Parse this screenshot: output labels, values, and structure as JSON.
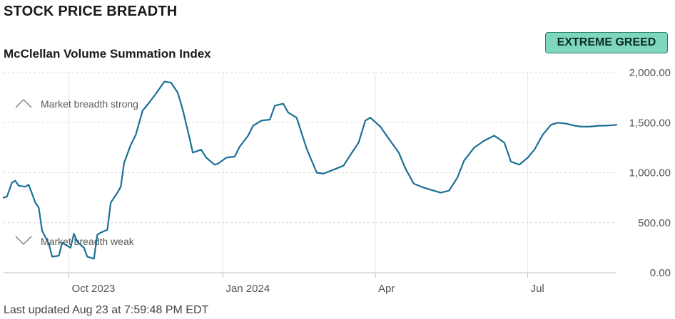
{
  "header": {
    "section_title": "STOCK PRICE BREADTH",
    "chart_title": "McClellan Volume Summation Index",
    "badge": "EXTREME GREED",
    "last_updated": "Last updated Aug 23 at 7:59:48 PM EDT"
  },
  "annotations": {
    "strong": "Market breadth strong",
    "weak": "Market breadth weak"
  },
  "colors": {
    "line": "#1b6f95",
    "badge_bg": "#7fd6bf",
    "badge_border": "#2c7f6b",
    "grid": "#d9d9d9"
  },
  "chart_data": {
    "type": "line",
    "title": "McClellan Volume Summation Index",
    "xlabel": "",
    "ylabel": "",
    "ylim": [
      0,
      2000
    ],
    "y_ticks": [
      "0.00",
      "500.00",
      "1,000.00",
      "1,500.00",
      "2,000.00"
    ],
    "x_ticks": [
      {
        "label": "Oct 2023",
        "date": "2023-10-01"
      },
      {
        "label": "Jan 2024",
        "date": "2024-01-01"
      },
      {
        "label": "Apr",
        "date": "2024-04-01"
      },
      {
        "label": "Jul",
        "date": "2024-07-01"
      }
    ],
    "grid": true,
    "series": [
      {
        "x": [
          "2023-08-23",
          "2023-08-25",
          "2023-08-28",
          "2023-08-30",
          "2023-09-01",
          "2023-09-05",
          "2023-09-07",
          "2023-09-11",
          "2023-09-13",
          "2023-09-15",
          "2023-09-19",
          "2023-09-21",
          "2023-09-25",
          "2023-09-27",
          "2023-10-02",
          "2023-10-04",
          "2023-10-06",
          "2023-10-10",
          "2023-10-12",
          "2023-10-16",
          "2023-10-18",
          "2023-10-20",
          "2023-10-24",
          "2023-10-26",
          "2023-10-30",
          "2023-11-01",
          "2023-11-03",
          "2023-11-07",
          "2023-11-10",
          "2023-11-14",
          "2023-11-17",
          "2023-11-22",
          "2023-11-27",
          "2023-12-01",
          "2023-12-05",
          "2023-12-08",
          "2023-12-12",
          "2023-12-14",
          "2023-12-19",
          "2023-12-22",
          "2023-12-27",
          "2023-12-29",
          "2024-01-03",
          "2024-01-08",
          "2024-01-11",
          "2024-01-16",
          "2024-01-19",
          "2024-01-24",
          "2024-01-29",
          "2024-02-01",
          "2024-02-06",
          "2024-02-09",
          "2024-02-14",
          "2024-02-20",
          "2024-02-26",
          "2024-03-01",
          "2024-03-07",
          "2024-03-13",
          "2024-03-18",
          "2024-03-22",
          "2024-03-26",
          "2024-03-29",
          "2024-04-04",
          "2024-04-09",
          "2024-04-15",
          "2024-04-19",
          "2024-04-24",
          "2024-04-30",
          "2024-05-06",
          "2024-05-10",
          "2024-05-15",
          "2024-05-20",
          "2024-05-24",
          "2024-05-30",
          "2024-06-05",
          "2024-06-11",
          "2024-06-17",
          "2024-06-21",
          "2024-06-26",
          "2024-07-01",
          "2024-07-05",
          "2024-07-10",
          "2024-07-15",
          "2024-07-19",
          "2024-07-24",
          "2024-07-29",
          "2024-08-02",
          "2024-08-07",
          "2024-08-13",
          "2024-08-16",
          "2024-08-21",
          "2024-08-23"
        ],
        "values": [
          750,
          760,
          900,
          920,
          870,
          860,
          880,
          700,
          650,
          420,
          290,
          160,
          170,
          300,
          250,
          390,
          310,
          250,
          160,
          140,
          380,
          400,
          430,
          700,
          800,
          860,
          1100,
          1280,
          1380,
          1620,
          1680,
          1790,
          1910,
          1900,
          1800,
          1630,
          1350,
          1200,
          1230,
          1150,
          1080,
          1090,
          1150,
          1160,
          1260,
          1370,
          1470,
          1520,
          1530,
          1670,
          1690,
          1600,
          1550,
          1240,
          1000,
          990,
          1030,
          1070,
          1200,
          1300,
          1520,
          1550,
          1460,
          1340,
          1200,
          1040,
          890,
          850,
          820,
          800,
          820,
          950,
          1120,
          1250,
          1320,
          1370,
          1300,
          1110,
          1080,
          1150,
          1230,
          1380,
          1480,
          1500,
          1490,
          1470,
          1460,
          1460,
          1470,
          1470,
          1475,
          1480
        ]
      }
    ]
  }
}
